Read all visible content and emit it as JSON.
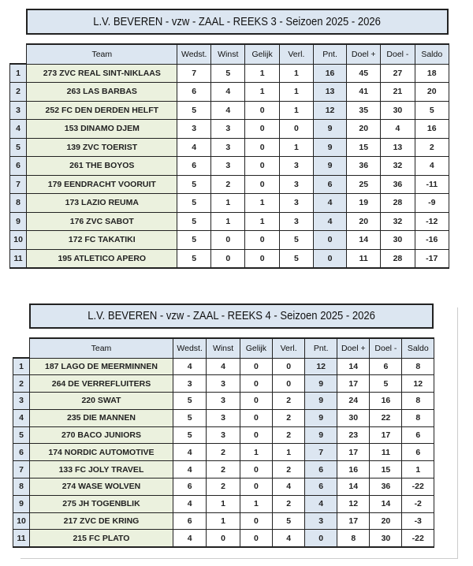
{
  "columns": [
    "Team",
    "Wedst.",
    "Winst",
    "Gelijk",
    "Verl.",
    "Pnt.",
    "Doel +",
    "Doel -",
    "Saldo"
  ],
  "tables": [
    {
      "title": "L.V. BEVEREN - vzw  - ZAAL - REEKS 3 - Seizoen 2025 - 2026",
      "rows": [
        [
          "1",
          "273 ZVC REAL SINT-NIKLAAS",
          "7",
          "5",
          "1",
          "1",
          "16",
          "45",
          "27",
          "18"
        ],
        [
          "2",
          "263 LAS BARBAS",
          "6",
          "4",
          "1",
          "1",
          "13",
          "41",
          "21",
          "20"
        ],
        [
          "3",
          "252 FC DEN DERDEN HELFT",
          "5",
          "4",
          "0",
          "1",
          "12",
          "35",
          "30",
          "5"
        ],
        [
          "4",
          "153 DINAMO DJEM",
          "3",
          "3",
          "0",
          "0",
          "9",
          "20",
          "4",
          "16"
        ],
        [
          "5",
          "139 ZVC TOERIST",
          "4",
          "3",
          "0",
          "1",
          "9",
          "15",
          "13",
          "2"
        ],
        [
          "6",
          "261 THE BOYOS",
          "6",
          "3",
          "0",
          "3",
          "9",
          "36",
          "32",
          "4"
        ],
        [
          "7",
          "179 EENDRACHT VOORUIT",
          "5",
          "2",
          "0",
          "3",
          "6",
          "25",
          "36",
          "-11"
        ],
        [
          "8",
          "173 LAZIO REUMA",
          "5",
          "1",
          "1",
          "3",
          "4",
          "19",
          "28",
          "-9"
        ],
        [
          "9",
          "176 ZVC SABOT",
          "5",
          "1",
          "1",
          "3",
          "4",
          "20",
          "32",
          "-12"
        ],
        [
          "10",
          "172 FC TAKATIKI",
          "5",
          "0",
          "0",
          "5",
          "0",
          "14",
          "30",
          "-16"
        ],
        [
          "11",
          "195 ATLETICO APERO",
          "5",
          "0",
          "0",
          "5",
          "0",
          "11",
          "28",
          "-17"
        ]
      ]
    },
    {
      "title": "L.V. BEVEREN - vzw  - ZAAL - REEKS 4 - Seizoen 2025 - 2026",
      "rows": [
        [
          "1",
          "187 LAGO DE MEERMINNEN",
          "4",
          "4",
          "0",
          "0",
          "12",
          "14",
          "6",
          "8"
        ],
        [
          "2",
          "264 DE VERREFLUITERS",
          "3",
          "3",
          "0",
          "0",
          "9",
          "17",
          "5",
          "12"
        ],
        [
          "3",
          "220 SWAT",
          "5",
          "3",
          "0",
          "2",
          "9",
          "24",
          "16",
          "8"
        ],
        [
          "4",
          "235 DIE MANNEN",
          "5",
          "3",
          "0",
          "2",
          "9",
          "30",
          "22",
          "8"
        ],
        [
          "5",
          "270 BACO JUNIORS",
          "5",
          "3",
          "0",
          "2",
          "9",
          "23",
          "17",
          "6"
        ],
        [
          "6",
          "174 NORDIC AUTOMOTIVE",
          "4",
          "2",
          "1",
          "1",
          "7",
          "17",
          "11",
          "6"
        ],
        [
          "7",
          "133 FC JOLY TRAVEL",
          "4",
          "2",
          "0",
          "2",
          "6",
          "16",
          "15",
          "1"
        ],
        [
          "8",
          "274 WASE WOLVEN",
          "6",
          "2",
          "0",
          "4",
          "6",
          "14",
          "36",
          "-22"
        ],
        [
          "9",
          "275 JH TOGENBLIK",
          "4",
          "1",
          "1",
          "2",
          "4",
          "12",
          "14",
          "-2"
        ],
        [
          "10",
          "217 ZVC DE KRING",
          "6",
          "1",
          "0",
          "5",
          "3",
          "17",
          "20",
          "-3"
        ],
        [
          "11",
          "215 FC PLATO",
          "4",
          "0",
          "0",
          "4",
          "0",
          "8",
          "30",
          "-22"
        ]
      ]
    }
  ]
}
